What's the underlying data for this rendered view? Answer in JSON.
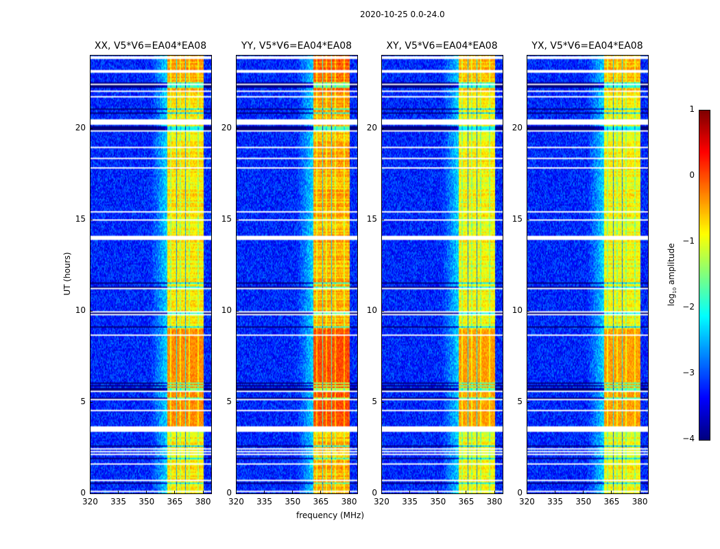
{
  "title": "2020-10-25 0.0-24.0",
  "chart_data": {
    "type": "heatmap",
    "xlabel": "frequency (MHz)",
    "ylabel": "UT (hours)",
    "xlim": [
      320,
      384.5
    ],
    "ylim": [
      0,
      24
    ],
    "xticks": [
      320,
      335,
      350,
      365,
      380
    ],
    "yticks": [
      0,
      5,
      10,
      15,
      20
    ],
    "panels": [
      {
        "title": "XX, V5*V6=EA04*EA08",
        "band_level": -0.8
      },
      {
        "title": "YY, V5*V6=EA04*EA08",
        "band_level": -0.5
      },
      {
        "title": "XY, V5*V6=EA04*EA08",
        "band_level": -0.9
      },
      {
        "title": "YX, V5*V6=EA04*EA08",
        "band_level": -0.9
      }
    ],
    "band_mhz": [
      361,
      380.5
    ],
    "background_level": -3.2,
    "flagged_hours": [
      0.15,
      0.9,
      3.6,
      3.75,
      9.95,
      10.05,
      14.05,
      14.2,
      20.45,
      20.55,
      21.7,
      21.85,
      22.4,
      23.3
    ],
    "colorbar": {
      "label": "log10 amplitude",
      "label_main": "log",
      "label_sub": "10",
      "label_rest": " amplitude",
      "range": [
        -4,
        1
      ],
      "ticks": [
        1,
        0,
        -1,
        -2,
        -3,
        -4
      ],
      "colormap": "jet"
    }
  }
}
